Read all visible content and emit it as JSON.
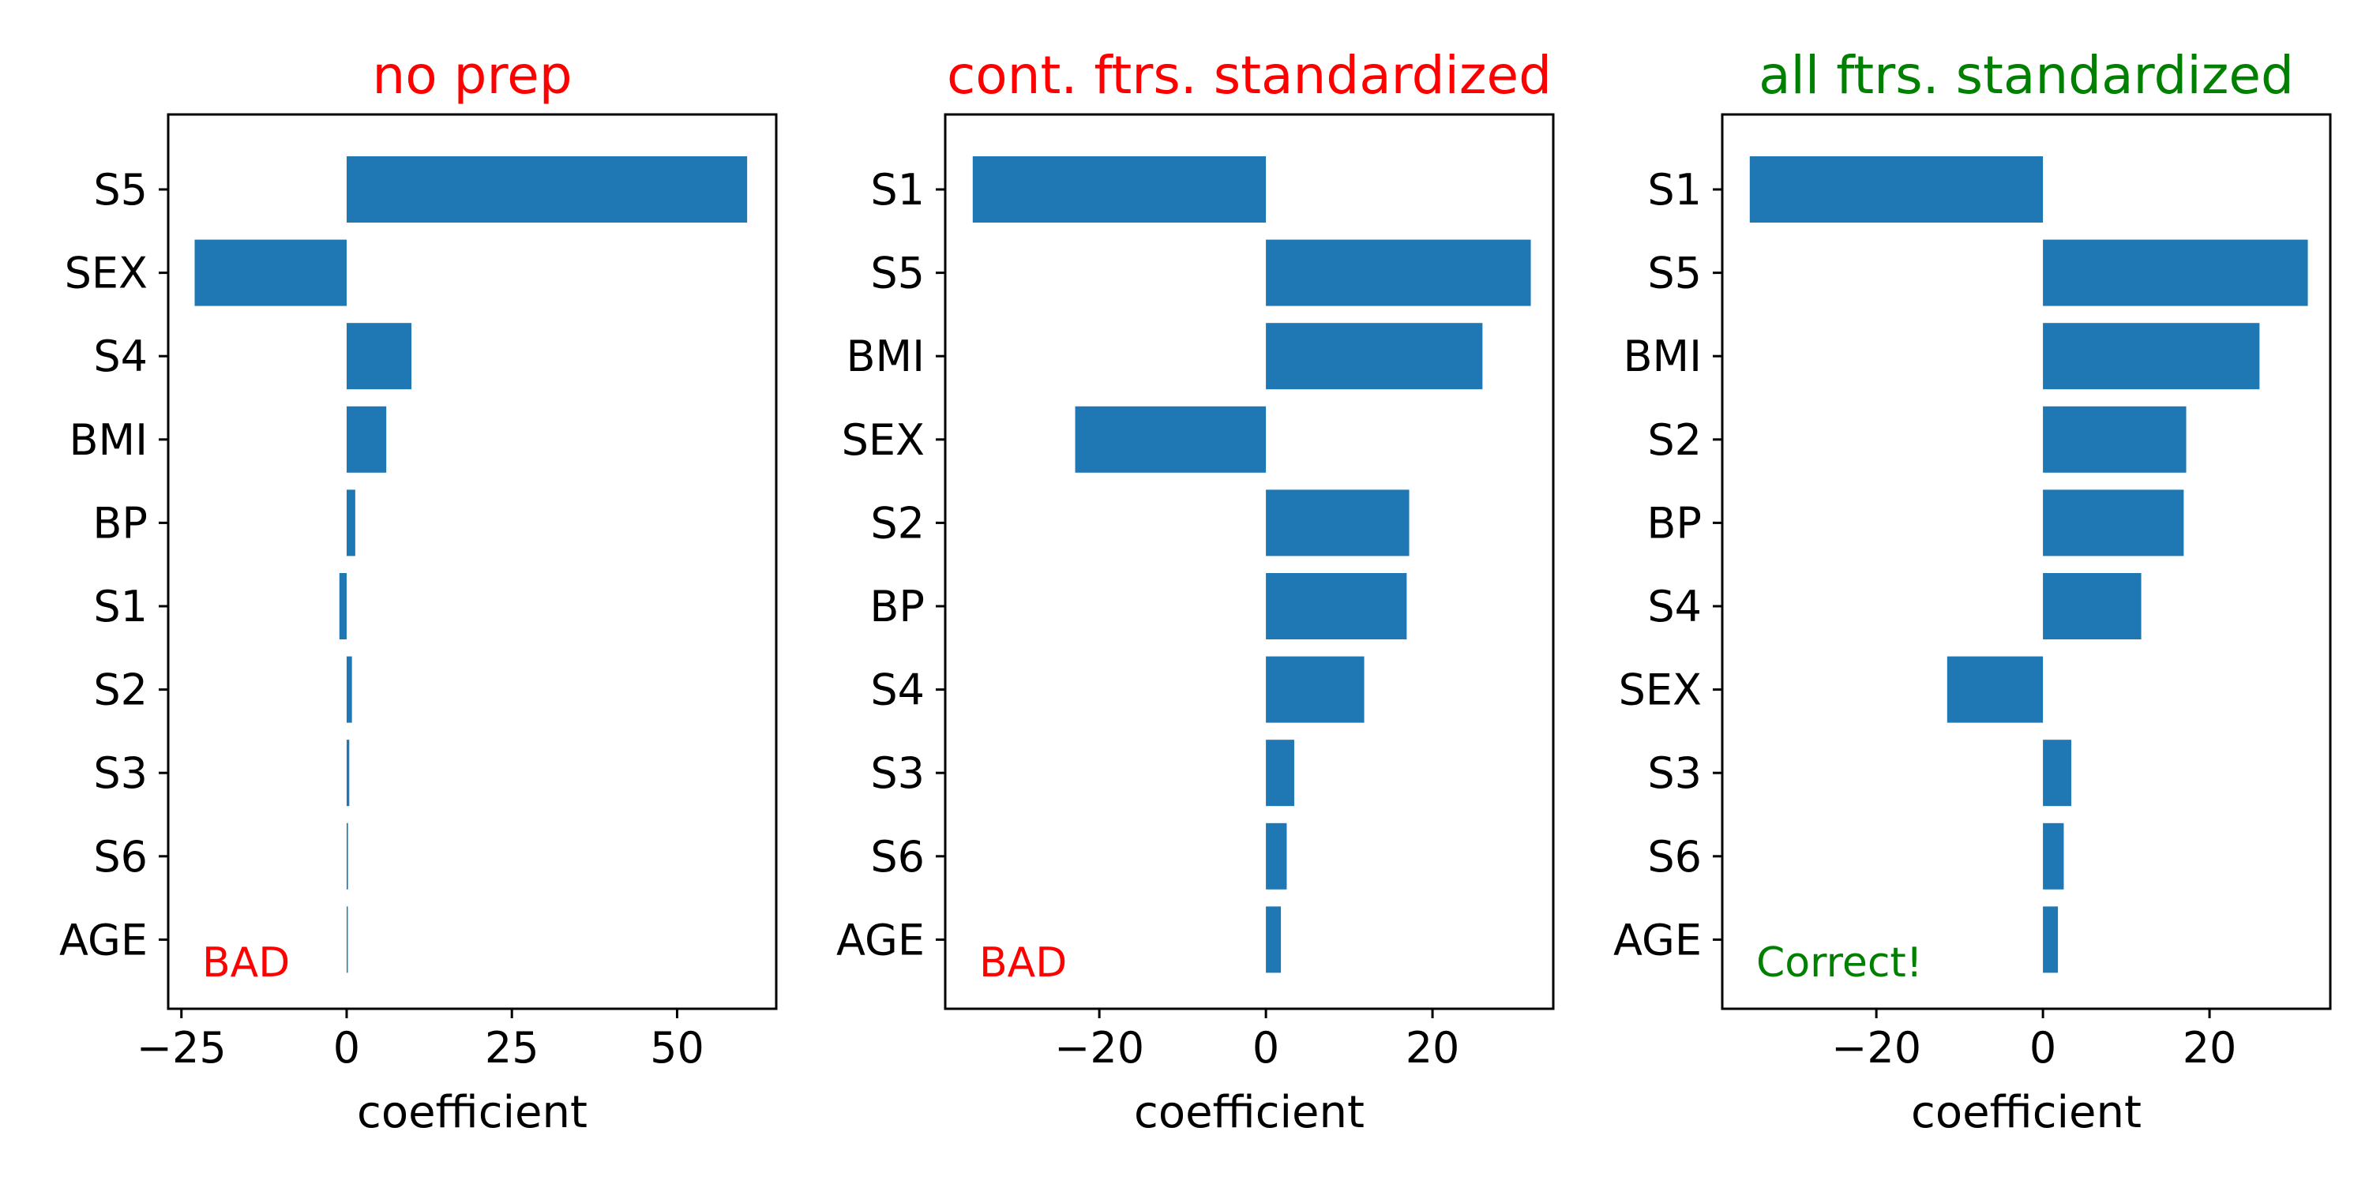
{
  "colors": {
    "bar": "#1f77b4"
  },
  "chart_data": [
    {
      "type": "bar",
      "orientation": "horizontal",
      "title": "no prep",
      "title_color": "#ff0000",
      "xlabel": "coefficient",
      "xlim": [
        -27,
        65
      ],
      "xticks": [
        -25,
        0,
        25,
        50
      ],
      "xtick_labels": [
        "−25",
        "0",
        "25",
        "50"
      ],
      "categories": [
        "S5",
        "SEX",
        "S4",
        "BMI",
        "BP",
        "S1",
        "S2",
        "S3",
        "S6",
        "AGE"
      ],
      "values": [
        60.6,
        -23.0,
        9.8,
        6.0,
        1.3,
        -1.1,
        0.8,
        0.4,
        0.2,
        0.1
      ],
      "annotation": "BAD",
      "annotation_color": "#ff0000"
    },
    {
      "type": "bar",
      "orientation": "horizontal",
      "title": "cont. ftrs. standardized",
      "title_color": "#ff0000",
      "xlabel": "coefficient",
      "xlim": [
        -38.5,
        34.5
      ],
      "xticks": [
        -20,
        0,
        20
      ],
      "xtick_labels": [
        "−20",
        "0",
        "20"
      ],
      "categories": [
        "S1",
        "S5",
        "BMI",
        "SEX",
        "S2",
        "BP",
        "S4",
        "S3",
        "S6",
        "AGE"
      ],
      "values": [
        -35.2,
        31.8,
        26.0,
        -22.9,
        17.2,
        16.9,
        11.8,
        3.4,
        2.5,
        1.8
      ],
      "annotation": "BAD",
      "annotation_color": "#ff0000"
    },
    {
      "type": "bar",
      "orientation": "horizontal",
      "title": "all ftrs. standardized",
      "title_color": "#008000",
      "xlabel": "coefficient",
      "xlim": [
        -38.5,
        34.5
      ],
      "xticks": [
        -20,
        0,
        20
      ],
      "xtick_labels": [
        "−20",
        "0",
        "20"
      ],
      "categories": [
        "S1",
        "S5",
        "BMI",
        "S2",
        "BP",
        "S4",
        "SEX",
        "S3",
        "S6",
        "AGE"
      ],
      "values": [
        -35.2,
        31.8,
        26.0,
        17.2,
        16.9,
        11.8,
        -11.5,
        3.4,
        2.5,
        1.8
      ],
      "annotation": "Correct!",
      "annotation_color": "#008000"
    }
  ]
}
